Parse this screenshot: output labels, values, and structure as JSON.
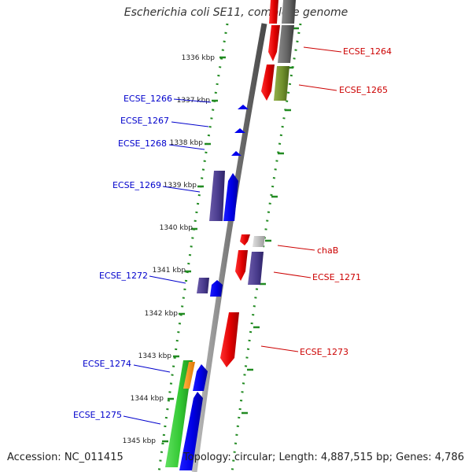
{
  "title": "Escherichia coli SE11, complete genome",
  "footer": {
    "accession": "Accession: NC_011415",
    "summary": "Topology: circular; Length: 4,887,515 bp; Genes: 4,786"
  },
  "colors": {
    "left_label": "#0000cc",
    "right_label": "#cc0000",
    "ruler_dots": "#228b22",
    "backbone": "#808080"
  },
  "ticks": [
    {
      "label": "1336 kbp"
    },
    {
      "label": "1337 kbp"
    },
    {
      "label": "1338 kbp"
    },
    {
      "label": "1339 kbp"
    },
    {
      "label": "1340 kbp"
    },
    {
      "label": "1341 kbp"
    },
    {
      "label": "1342 kbp"
    },
    {
      "label": "1343 kbp"
    },
    {
      "label": "1344 kbp"
    },
    {
      "label": "1345 kbp"
    }
  ],
  "gene_labels_left": [
    {
      "text": "ECSE_1266"
    },
    {
      "text": "ECSE_1267"
    },
    {
      "text": "ECSE_1268"
    },
    {
      "text": "ECSE_1269"
    },
    {
      "text": "ECSE_1272"
    },
    {
      "text": "ECSE_1274"
    },
    {
      "text": "ECSE_1275"
    }
  ],
  "gene_labels_right": [
    {
      "text": "ECSE_1264"
    },
    {
      "text": "ECSE_1265"
    },
    {
      "text": "chaB"
    },
    {
      "text": "ECSE_1271"
    },
    {
      "text": "ECSE_1273"
    }
  ]
}
